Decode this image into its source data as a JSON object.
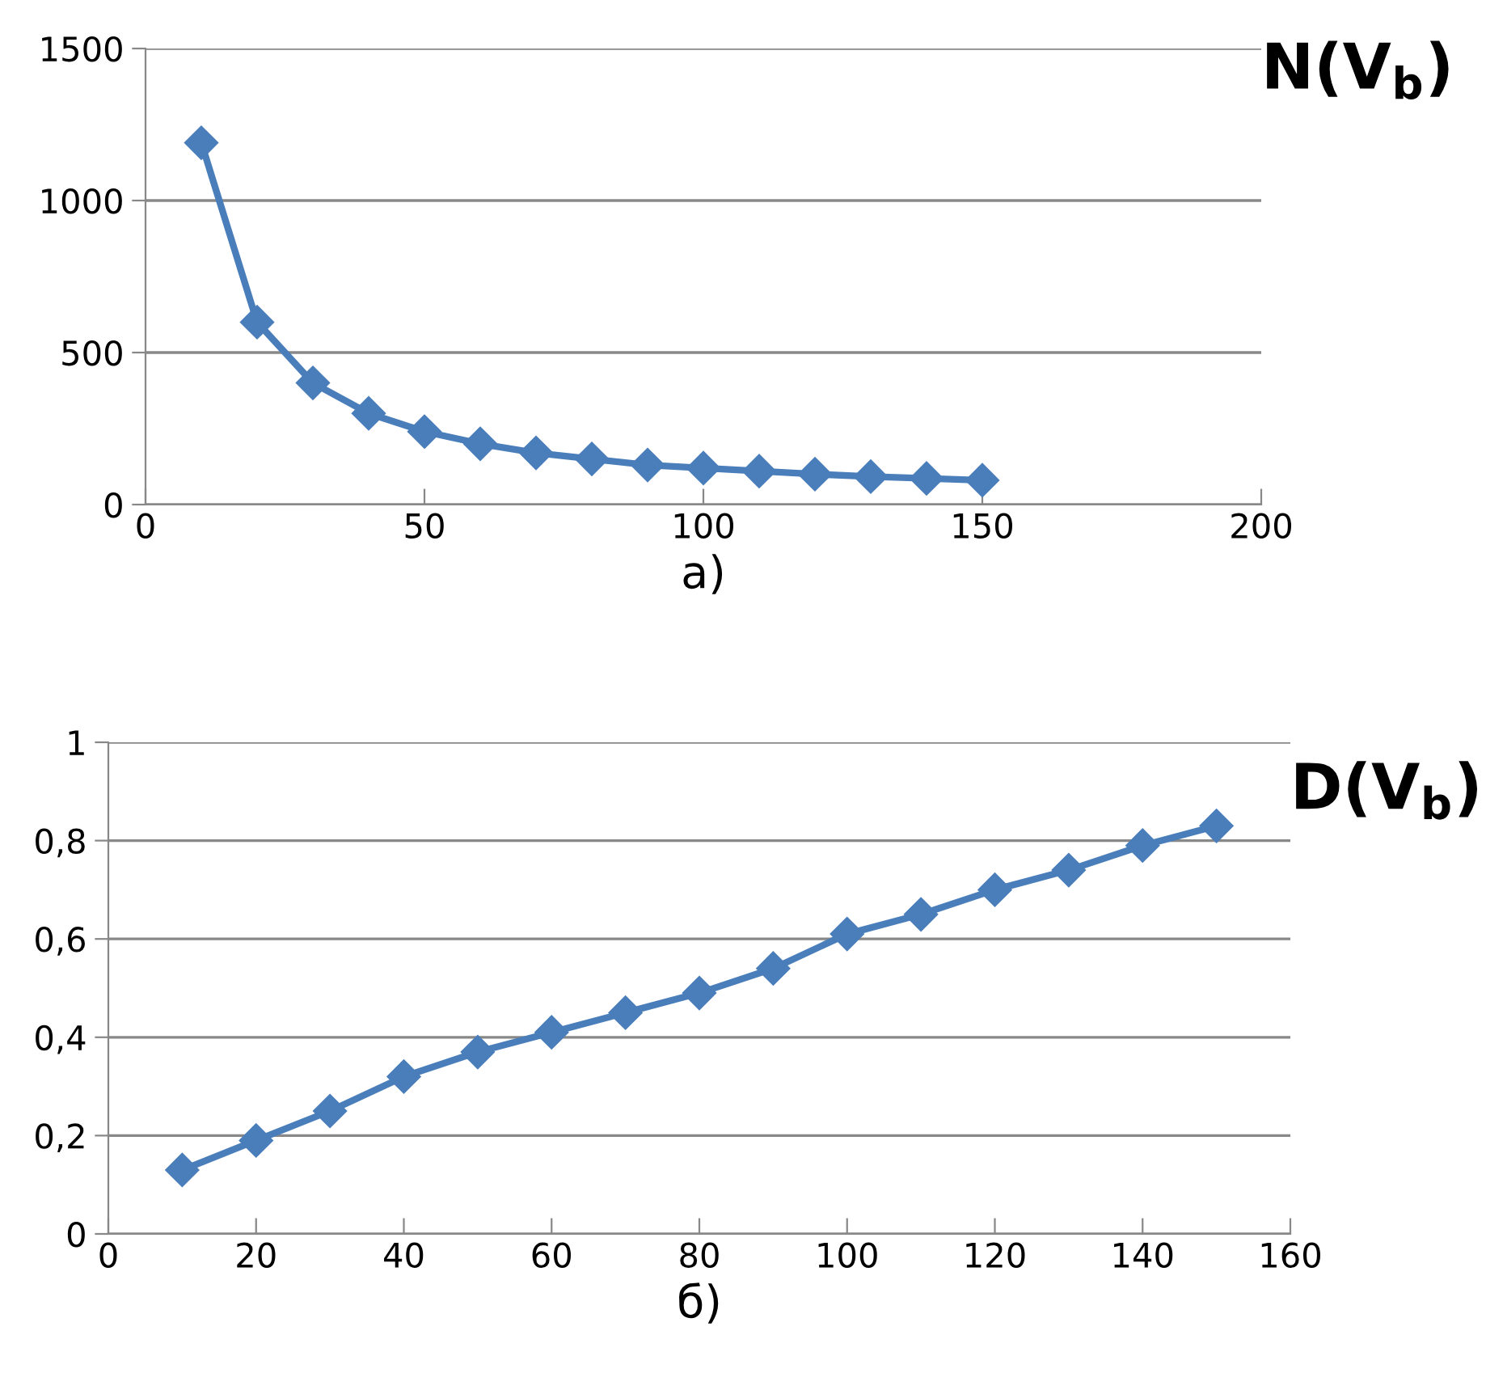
{
  "chart_data": [
    {
      "type": "line",
      "title": "N(V$_{b}$)",
      "xlabel": "а)",
      "x": [
        10,
        20,
        30,
        40,
        50,
        60,
        70,
        80,
        90,
        100,
        110,
        120,
        130,
        140,
        150
      ],
      "series": [
        {
          "color": "#4a7ebb",
          "values": [
            1190,
            600,
            400,
            300,
            240,
            200,
            170,
            150,
            130,
            120,
            110,
            100,
            92,
            86,
            80
          ]
        }
      ],
      "xlim": [
        0,
        200
      ],
      "xticks": [
        0,
        50,
        100,
        150,
        200
      ],
      "ylim": [
        0,
        1500
      ],
      "yticks": [
        0,
        500,
        1000,
        1500
      ],
      "grid": "y",
      "marker": "diamond",
      "line_style": "solid",
      "legend": false
    },
    {
      "type": "line",
      "title": "D(V$_{b}$)",
      "xlabel": "б)",
      "x": [
        10,
        20,
        30,
        40,
        50,
        60,
        70,
        80,
        90,
        100,
        110,
        120,
        130,
        140,
        150
      ],
      "series": [
        {
          "color": "#4a7ebb",
          "values": [
            0.13,
            0.19,
            0.25,
            0.32,
            0.37,
            0.41,
            0.45,
            0.49,
            0.54,
            0.61,
            0.65,
            0.7,
            0.74,
            0.79,
            0.83
          ]
        }
      ],
      "xlim": [
        0,
        160
      ],
      "xticks": [
        0,
        20,
        40,
        60,
        80,
        100,
        120,
        140,
        160
      ],
      "ylim": [
        0,
        1
      ],
      "yticks": [
        0,
        {
          "value": 0.2,
          "label": "0,2"
        },
        {
          "value": 0.4,
          "label": "0,4"
        },
        {
          "value": 0.6,
          "label": "0,6"
        },
        {
          "value": 0.8,
          "label": "0,8"
        },
        1
      ],
      "grid": "y",
      "marker": "diamond",
      "line_style": "solid",
      "legend": false
    }
  ]
}
